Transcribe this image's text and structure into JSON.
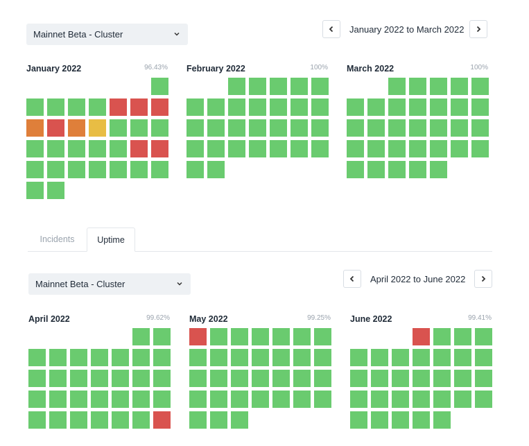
{
  "colors": {
    "up": "#6acb6f",
    "down": "#d9534f",
    "degraded": "#df7f3a",
    "partial": "#e8bd44"
  },
  "top": {
    "cluster_select": "Mainnet Beta - Cluster",
    "range_label": "January 2022 to March 2022",
    "months": [
      {
        "name": "January 2022",
        "uptime": "96.43%",
        "first_col": 6,
        "days": [
          "u",
          "u",
          "u",
          "u",
          "u",
          "d",
          "d",
          "d",
          "o",
          "d",
          "o",
          "p",
          "u",
          "u",
          "u",
          "u",
          "u",
          "u",
          "u",
          "u",
          "d",
          "d",
          "u",
          "u",
          "u",
          "u",
          "u",
          "u",
          "u",
          "u",
          "u"
        ]
      },
      {
        "name": "February 2022",
        "uptime": "100%",
        "first_col": 2,
        "days": [
          "u",
          "u",
          "u",
          "u",
          "u",
          "u",
          "u",
          "u",
          "u",
          "u",
          "u",
          "u",
          "u",
          "u",
          "u",
          "u",
          "u",
          "u",
          "u",
          "u",
          "u",
          "u",
          "u",
          "u",
          "u",
          "u",
          "u",
          "u"
        ]
      },
      {
        "name": "March 2022",
        "uptime": "100%",
        "first_col": 2,
        "days": [
          "u",
          "u",
          "u",
          "u",
          "u",
          "u",
          "u",
          "u",
          "u",
          "u",
          "u",
          "u",
          "u",
          "u",
          "u",
          "u",
          "u",
          "u",
          "u",
          "u",
          "u",
          "u",
          "u",
          "u",
          "u",
          "u",
          "u",
          "u",
          "u",
          "u",
          "u"
        ]
      }
    ]
  },
  "tabs": [
    {
      "label": "Incidents",
      "active": false
    },
    {
      "label": "Uptime",
      "active": true
    }
  ],
  "bottom": {
    "cluster_select": "Mainnet Beta - Cluster",
    "range_label": "April 2022 to June 2022",
    "months": [
      {
        "name": "April 2022",
        "uptime": "99.62%",
        "first_col": 5,
        "days": [
          "u",
          "u",
          "u",
          "u",
          "u",
          "u",
          "u",
          "u",
          "u",
          "u",
          "u",
          "u",
          "u",
          "u",
          "u",
          "u",
          "u",
          "u",
          "u",
          "u",
          "u",
          "u",
          "u",
          "u",
          "u",
          "u",
          "u",
          "u",
          "u",
          "d"
        ]
      },
      {
        "name": "May 2022",
        "uptime": "99.25%",
        "first_col": 0,
        "days": [
          "d",
          "u",
          "u",
          "u",
          "u",
          "u",
          "u",
          "u",
          "u",
          "u",
          "u",
          "u",
          "u",
          "u",
          "u",
          "u",
          "u",
          "u",
          "u",
          "u",
          "u",
          "u",
          "u",
          "u",
          "u",
          "u",
          "u",
          "u",
          "u",
          "u",
          "u"
        ]
      },
      {
        "name": "June 2022",
        "uptime": "99.41%",
        "first_col": 3,
        "days": [
          "d",
          "u",
          "u",
          "u",
          "u",
          "u",
          "u",
          "u",
          "u",
          "u",
          "u",
          "u",
          "u",
          "u",
          "u",
          "u",
          "u",
          "u",
          "u",
          "u",
          "u",
          "u",
          "u",
          "u",
          "u",
          "u",
          "u",
          "u",
          "u",
          "u"
        ]
      }
    ]
  }
}
